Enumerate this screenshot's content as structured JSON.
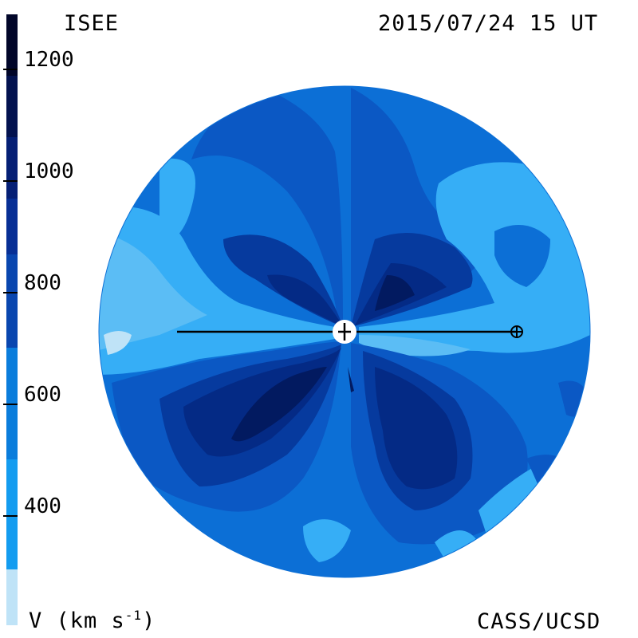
{
  "header": {
    "left_title": "ISEE",
    "right_title": "2015/07/24 15 UT"
  },
  "footer": {
    "left_label": "V (km s",
    "left_label_exp": "-1",
    "left_label_close": ")",
    "right_label": "CASS/UCSD"
  },
  "colorbar": {
    "ticks": [
      "1200",
      "1000",
      "800",
      "600",
      "400"
    ],
    "colors": [
      "#bfe3f7",
      "#5bbdf5",
      "#139cf0",
      "#0a7ddc",
      "#0a5fc8",
      "#0946af",
      "#072f95",
      "#051f75",
      "#03124f",
      "#010629"
    ]
  },
  "diagram": {
    "disk_colors": {
      "base": "#0c6fd6",
      "light": "#36aef6",
      "lighter": "#8fd3fb",
      "mid": "#0b58c4",
      "dark": "#063a9e",
      "darker": "#042a85",
      "darkest": "#021a60"
    }
  }
}
